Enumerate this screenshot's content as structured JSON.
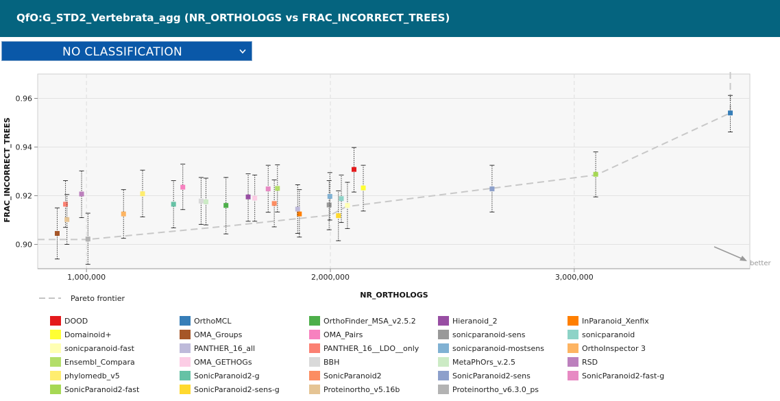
{
  "header": {
    "title": "QfO:G_STD2_Vertebrata_agg (NR_ORTHOLOGS vs FRAC_INCORRECT_TREES)"
  },
  "classification": {
    "selected": "NO CLASSIFICATION"
  },
  "chart_data": {
    "type": "scatter",
    "title": "",
    "xlabel": "NR_ORTHOLOGS",
    "ylabel": "FRAC_INCORRECT_TREES",
    "xlim": [
      800000,
      3720000
    ],
    "ylim": [
      0.89,
      0.97
    ],
    "xticks": [
      1000000,
      2000000,
      3000000
    ],
    "xtick_labels": [
      "1,000,000",
      "2,000,000",
      "3,000,000"
    ],
    "yticks": [
      0.9,
      0.92,
      0.94,
      0.96
    ],
    "ytick_labels": [
      "0.90",
      "0.92",
      "0.94",
      "0.96"
    ],
    "grid": true,
    "pareto_label": "Pareto frontier",
    "better_label": "better",
    "pareto_frontier": [
      [
        800000,
        0.902
      ],
      [
        1003000,
        0.902
      ],
      [
        1575000,
        0.9075
      ],
      [
        2000000,
        0.912
      ],
      [
        2065000,
        0.9155
      ],
      [
        2660000,
        0.923
      ],
      [
        3090000,
        0.9285
      ],
      [
        3640000,
        0.954
      ],
      [
        3640000,
        0.975
      ]
    ],
    "series": [
      {
        "name": "DOOD",
        "color": "#e41a1c",
        "x": 2097000,
        "y": 0.9308,
        "err": [
          0.9215,
          0.9398
        ]
      },
      {
        "name": "OrthoMCL",
        "color": "#377eb8",
        "x": 3640000,
        "y": 0.954,
        "err": [
          0.9462,
          0.9612
        ]
      },
      {
        "name": "OrthoFinder_MSA_v2.5.2",
        "color": "#4daf4a",
        "x": 1572000,
        "y": 0.916,
        "err": [
          0.9043,
          0.9275
        ]
      },
      {
        "name": "Hieranoid_2",
        "color": "#984ea3",
        "x": 1663000,
        "y": 0.9195,
        "err": [
          0.9095,
          0.929
        ]
      },
      {
        "name": "InParanoid_Xenfix",
        "color": "#ff7f00",
        "x": 1873000,
        "y": 0.9125,
        "err": [
          0.903,
          0.9225
        ]
      },
      {
        "name": "Domainoid+",
        "color": "#ffff33",
        "x": 2135000,
        "y": 0.9232,
        "err": [
          0.9137,
          0.9325
        ]
      },
      {
        "name": "OMA_Groups",
        "color": "#a65628",
        "x": 880000,
        "y": 0.9045,
        "err": [
          0.894,
          0.915
        ]
      },
      {
        "name": "OMA_Pairs",
        "color": "#f781bf",
        "x": 1395000,
        "y": 0.9235,
        "err": [
          0.9143,
          0.933
        ]
      },
      {
        "name": "sonicparanoid-sens",
        "color": "#999999",
        "x": 1995000,
        "y": 0.9162,
        "err": [
          0.906,
          0.9262
        ]
      },
      {
        "name": "sonicparanoid",
        "color": "#8dd3c7",
        "x": 2045000,
        "y": 0.9188,
        "err": [
          0.909,
          0.9285
        ]
      },
      {
        "name": "sonicparanoid-fast",
        "color": "#ffffb3",
        "x": 2070000,
        "y": 0.916,
        "err": [
          0.9065,
          0.9255
        ]
      },
      {
        "name": "PANTHER_16_all",
        "color": "#bebada",
        "x": 1866000,
        "y": 0.9145,
        "err": [
          0.9045,
          0.9245
        ]
      },
      {
        "name": "PANTHER_16__LDO__only",
        "color": "#fb8072",
        "x": 914000,
        "y": 0.9165,
        "err": [
          0.907,
          0.9262
        ]
      },
      {
        "name": "sonicparanoid-mostsens",
        "color": "#80b1d3",
        "x": 1998000,
        "y": 0.9197,
        "err": [
          0.91,
          0.9295
        ]
      },
      {
        "name": "OrthoInspector 3",
        "color": "#fdb462",
        "x": 1152000,
        "y": 0.9125,
        "err": [
          0.9025,
          0.9225
        ]
      },
      {
        "name": "Ensembl_Compara",
        "color": "#b3de69",
        "x": 1783000,
        "y": 0.923,
        "err": [
          0.9133,
          0.9327
        ]
      },
      {
        "name": "OMA_GETHOGs",
        "color": "#fccde5",
        "x": 1690000,
        "y": 0.919,
        "err": [
          0.9095,
          0.9285
        ]
      },
      {
        "name": "BBH",
        "color": "#d9d9d9",
        "x": 1470000,
        "y": 0.9178,
        "err": [
          0.9082,
          0.9275
        ]
      },
      {
        "name": "MetaPhOrs_v.2.5",
        "color": "#ccebc5",
        "x": 1490000,
        "y": 0.9175,
        "err": [
          0.908,
          0.9272
        ]
      },
      {
        "name": "RSD",
        "color": "#bc80bd",
        "x": 980000,
        "y": 0.9207,
        "err": [
          0.911,
          0.9302
        ]
      },
      {
        "name": "phylomedb_v5",
        "color": "#ffed6f",
        "x": 1230000,
        "y": 0.9208,
        "err": [
          0.9113,
          0.9305
        ]
      },
      {
        "name": "SonicParanoid2-g",
        "color": "#66c2a5",
        "x": 1357000,
        "y": 0.9165,
        "err": [
          0.9068,
          0.9262
        ]
      },
      {
        "name": "SonicParanoid2",
        "color": "#fc8d62",
        "x": 1770000,
        "y": 0.9168,
        "err": [
          0.9072,
          0.9265
        ]
      },
      {
        "name": "SonicParanoid2-sens",
        "color": "#8da0cb",
        "x": 2663000,
        "y": 0.9228,
        "err": [
          0.9133,
          0.9325
        ]
      },
      {
        "name": "SonicParanoid2-fast-g",
        "color": "#e78ac3",
        "x": 1745000,
        "y": 0.9228,
        "err": [
          0.9132,
          0.9325
        ]
      },
      {
        "name": "SonicParanoid2-fast",
        "color": "#a6d854",
        "x": 3088000,
        "y": 0.9288,
        "err": [
          0.9195,
          0.938
        ]
      },
      {
        "name": "SonicParanoid2-sens-g",
        "color": "#ffd92f",
        "x": 2033000,
        "y": 0.9118,
        "err": [
          0.9015,
          0.922
        ]
      },
      {
        "name": "Proteinortho_v5.16b",
        "color": "#e5c494",
        "x": 920000,
        "y": 0.9102,
        "err": [
          0.9,
          0.9205
        ]
      },
      {
        "name": "Proteinortho_v6.3.0_ps",
        "color": "#b3b3b3",
        "x": 1006000,
        "y": 0.9022,
        "err": [
          0.8918,
          0.9128
        ]
      }
    ]
  }
}
